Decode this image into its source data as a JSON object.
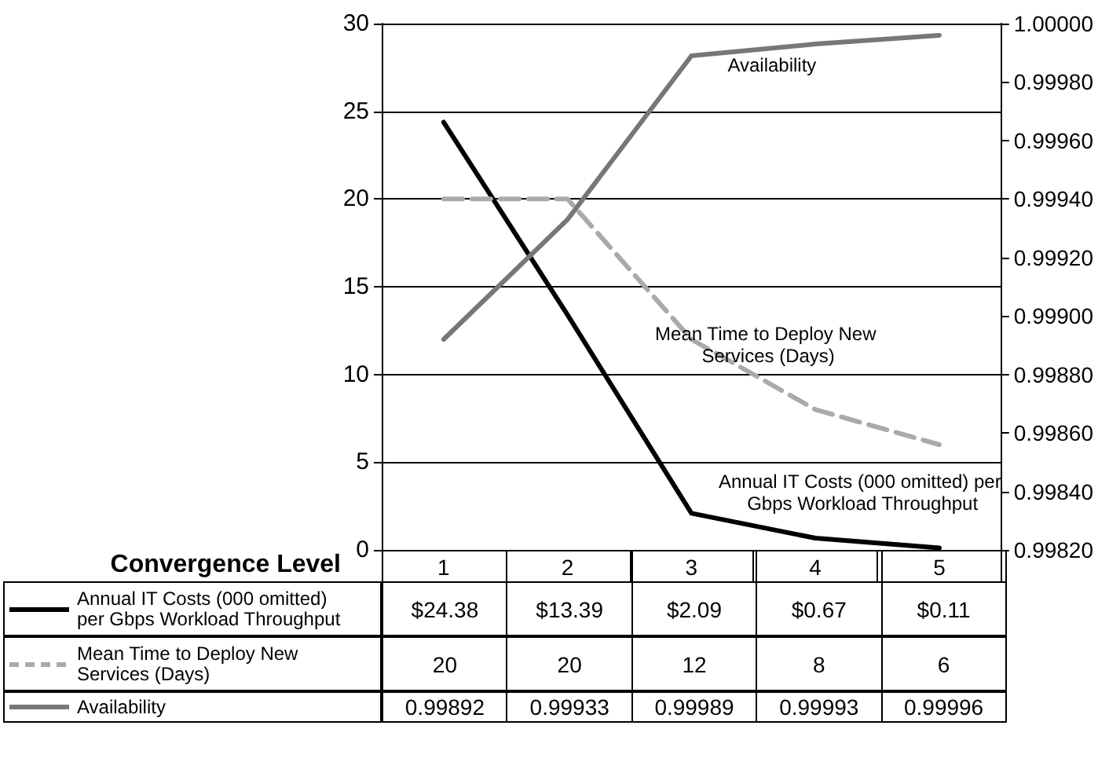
{
  "chart_data": {
    "type": "line",
    "xlabel": "Convergence Level",
    "categories": [
      "1",
      "2",
      "3",
      "4",
      "5"
    ],
    "ylim": [
      0,
      30
    ],
    "yticks": [
      0,
      5,
      10,
      15,
      20,
      25,
      30
    ],
    "y2lim": [
      0.9982,
      1.0
    ],
    "y2ticks": [
      {
        "value": 0.9982,
        "label": "0.99820"
      },
      {
        "value": 0.9984,
        "label": "0.99840"
      },
      {
        "value": 0.9986,
        "label": "0.99860"
      },
      {
        "value": 0.9988,
        "label": "0.99880"
      },
      {
        "value": 0.999,
        "label": "0.99900"
      },
      {
        "value": 0.9992,
        "label": "0.99920"
      },
      {
        "value": 0.9994,
        "label": "0.99940"
      },
      {
        "value": 0.9996,
        "label": "0.99960"
      },
      {
        "value": 0.9998,
        "label": "0.99980"
      },
      {
        "value": 1.0,
        "label": "1.00000"
      }
    ],
    "grid": "y",
    "marker": "none",
    "legend": "bottom left",
    "series": [
      {
        "name": "Annual IT Costs (000 omitted) per Gbps Workload Throughput",
        "color": "#000000",
        "line_style": "solid",
        "values": [
          24.38,
          13.39,
          2.09,
          0.67,
          0.11
        ],
        "value_labels": [
          "$24.38",
          "$13.39",
          "$2.09",
          "$0.67",
          "$0.11"
        ]
      },
      {
        "name": "Mean Time to Deploy New Services (Days)",
        "color": "#aaaaaa",
        "line_style": "dashed",
        "values": [
          20,
          20,
          12,
          8,
          6
        ],
        "value_labels": [
          "20",
          "20",
          "12",
          "8",
          "6"
        ]
      },
      {
        "name": "Availability",
        "color": "#777777",
        "line_style": "solid",
        "axis": "y2",
        "values": [
          0.99892,
          0.99933,
          0.99989,
          0.99993,
          0.99996
        ],
        "value_labels": [
          "0.99892",
          "0.99933",
          "0.99989",
          "0.99993",
          "0.99996"
        ]
      }
    ]
  }
}
